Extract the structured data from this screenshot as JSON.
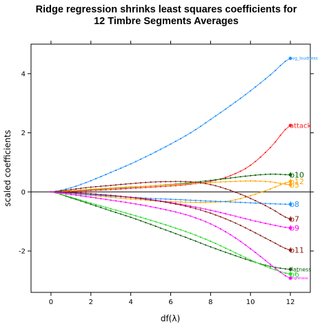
{
  "chart_data": {
    "type": "line",
    "title": [
      "Ridge regression shrinks least squares coefficients for",
      "12 Timbre Segments Averages"
    ],
    "xlabel": "df(λ)",
    "ylabel": "scaled coefficients",
    "xlim": [
      -1,
      13
    ],
    "ylim": [
      -3.4,
      5.0
    ],
    "xticks": [
      0,
      2,
      4,
      6,
      8,
      10,
      12
    ],
    "yticks": [
      -2,
      0,
      2,
      4
    ],
    "reference_line": 0,
    "x": [
      0,
      1,
      2,
      3,
      4,
      5,
      6,
      7,
      8,
      9,
      10,
      11,
      12
    ],
    "series": [
      {
        "name": "avg_loudness",
        "color": "#1e8fff",
        "label_size": 6,
        "values": [
          0,
          0.14,
          0.38,
          0.66,
          0.95,
          1.27,
          1.62,
          2.0,
          2.45,
          2.92,
          3.42,
          3.96,
          4.52
        ]
      },
      {
        "name": "attack",
        "color": "#ff2020",
        "label_size": 10,
        "values": [
          0,
          0.02,
          0.05,
          0.08,
          0.12,
          0.16,
          0.2,
          0.26,
          0.36,
          0.55,
          0.9,
          1.5,
          2.25
        ]
      },
      {
        "name": "b10",
        "color": "#006400",
        "label_size": 11,
        "values": [
          0,
          0.04,
          0.08,
          0.12,
          0.16,
          0.2,
          0.25,
          0.31,
          0.39,
          0.47,
          0.55,
          0.6,
          0.58
        ]
      },
      {
        "name": "b12",
        "color": "#ffa500",
        "label_size": 11,
        "values": [
          0,
          -0.06,
          -0.12,
          -0.18,
          -0.24,
          -0.29,
          -0.33,
          -0.35,
          -0.35,
          -0.3,
          -0.13,
          0.1,
          0.35
        ]
      },
      {
        "name": "b5",
        "color": "#ffa500",
        "label_size": 11,
        "values": [
          0,
          0.04,
          0.09,
          0.13,
          0.17,
          0.2,
          0.24,
          0.28,
          0.32,
          0.35,
          0.37,
          0.34,
          0.24
        ]
      },
      {
        "name": "b8",
        "color": "#1e8fff",
        "label_size": 11,
        "values": [
          0,
          -0.05,
          -0.1,
          -0.14,
          -0.18,
          -0.22,
          -0.25,
          -0.28,
          -0.31,
          -0.34,
          -0.37,
          -0.4,
          -0.42
        ]
      },
      {
        "name": "b7",
        "color": "#8b1a1a",
        "label_size": 11,
        "values": [
          0,
          0.08,
          0.16,
          0.22,
          0.28,
          0.33,
          0.35,
          0.34,
          0.25,
          0.05,
          -0.22,
          -0.55,
          -0.92
        ]
      },
      {
        "name": "b9",
        "color": "#ff00ff",
        "label_size": 11,
        "values": [
          0,
          -0.03,
          -0.07,
          -0.12,
          -0.18,
          -0.26,
          -0.36,
          -0.48,
          -0.62,
          -0.78,
          -0.95,
          -1.1,
          -1.22
        ]
      },
      {
        "name": "b11",
        "color": "#8b1a1a",
        "label_size": 11,
        "values": [
          0,
          -0.02,
          -0.06,
          -0.12,
          -0.19,
          -0.27,
          -0.38,
          -0.52,
          -0.72,
          -0.98,
          -1.3,
          -1.65,
          -1.97
        ]
      },
      {
        "name": "flatness",
        "color": "#0f5f0f",
        "label_size": 8,
        "values": [
          0,
          -0.2,
          -0.42,
          -0.64,
          -0.86,
          -1.1,
          -1.35,
          -1.6,
          -1.86,
          -2.1,
          -2.33,
          -2.52,
          -2.62
        ]
      },
      {
        "name": "b6",
        "color": "#22dd22",
        "label_size": 11,
        "values": [
          0,
          -0.18,
          -0.38,
          -0.57,
          -0.76,
          -0.96,
          -1.17,
          -1.4,
          -1.67,
          -1.98,
          -2.3,
          -2.58,
          -2.78
        ]
      },
      {
        "name": "brightness",
        "color": "#ff00ff",
        "label_size": 5,
        "values": [
          0,
          -0.09,
          -0.18,
          -0.28,
          -0.38,
          -0.5,
          -0.64,
          -0.82,
          -1.08,
          -1.45,
          -1.92,
          -2.45,
          -2.92
        ]
      }
    ]
  }
}
